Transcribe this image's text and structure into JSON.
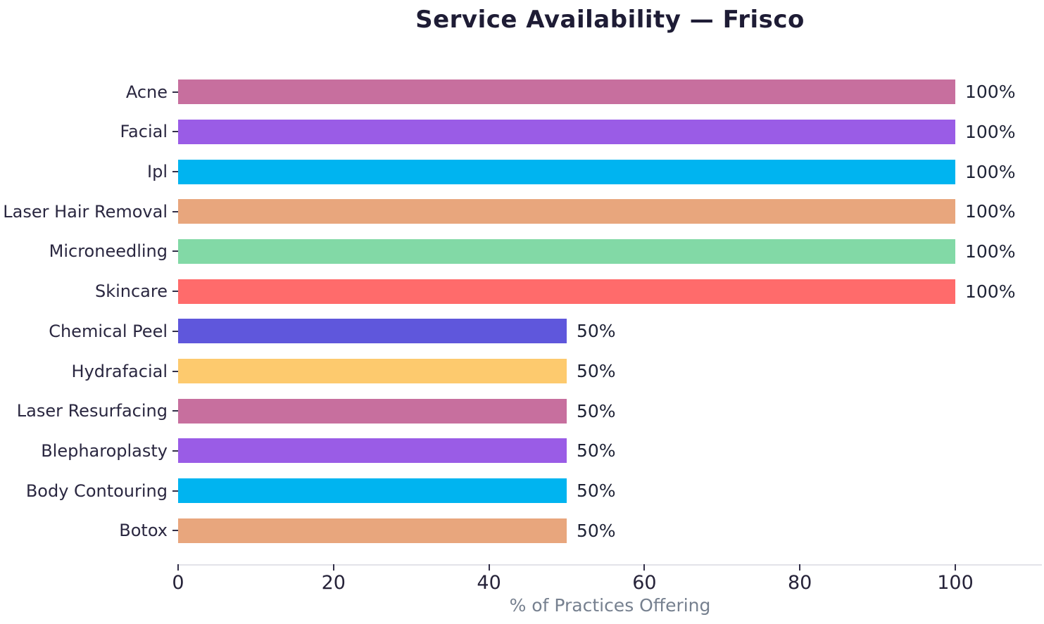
{
  "chart_data": {
    "type": "bar",
    "orientation": "horizontal",
    "title": "Service Availability — Frisco",
    "xlabel": "% of Practices Offering",
    "ylabel": "",
    "xlim": [
      0,
      111
    ],
    "xticks": [
      0,
      20,
      40,
      60,
      80,
      100
    ],
    "grid": false,
    "legend": false,
    "categories": [
      "Acne",
      "Facial",
      "Ipl",
      "Laser Hair Removal",
      "Microneedling",
      "Skincare",
      "Chemical Peel",
      "Hydrafacial",
      "Laser Resurfacing",
      "Blepharoplasty",
      "Body Contouring",
      "Botox"
    ],
    "values": [
      100,
      100,
      100,
      100,
      100,
      100,
      50,
      50,
      50,
      50,
      50,
      50
    ],
    "value_labels": [
      "100%",
      "100%",
      "100%",
      "100%",
      "100%",
      "100%",
      "50%",
      "50%",
      "50%",
      "50%",
      "50%",
      "50%"
    ],
    "bar_colors": [
      "#C76F9E",
      "#9A5CE6",
      "#00B4F0",
      "#E8A67D",
      "#82D9A6",
      "#FF6B6B",
      "#5F57DC",
      "#FDCA6E",
      "#C76F9E",
      "#9A5CE6",
      "#00B4F0",
      "#E8A67D"
    ]
  },
  "theme": {
    "background": "#FFFFFF",
    "title_color": "#1E1C35",
    "category_label_color": "#2A2740",
    "value_label_color": "#1E2235",
    "tick_label_color": "#262339",
    "axis_label_color": "#76808F",
    "axis_line_color": "#E3E3E9",
    "tick_mark_color": "#34314A"
  }
}
